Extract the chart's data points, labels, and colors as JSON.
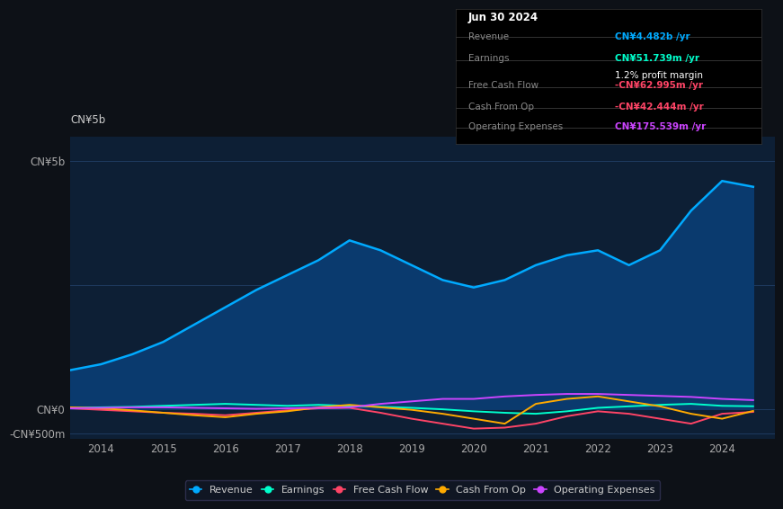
{
  "bg_color": "#0d1117",
  "plot_bg_color": "#0d1f35",
  "grid_color": "#1e3a5f",
  "ylim": [
    -600000000,
    5500000000
  ],
  "yticks": [
    -500000000,
    0,
    5000000000
  ],
  "ytick_labels": [
    "-CN¥500m",
    "CN¥0",
    "CN¥5b"
  ],
  "xmin": 2013.5,
  "xmax": 2024.85,
  "xticks": [
    2014,
    2015,
    2016,
    2017,
    2018,
    2019,
    2020,
    2021,
    2022,
    2023,
    2024
  ],
  "revenue": {
    "years": [
      2013.5,
      2014.0,
      2014.5,
      2015.0,
      2015.5,
      2016.0,
      2016.5,
      2017.0,
      2017.5,
      2018.0,
      2018.5,
      2019.0,
      2019.5,
      2020.0,
      2020.5,
      2021.0,
      2021.5,
      2022.0,
      2022.5,
      2023.0,
      2023.5,
      2024.0,
      2024.5
    ],
    "values": [
      780000000,
      900000000,
      1100000000,
      1350000000,
      1700000000,
      2050000000,
      2400000000,
      2700000000,
      3000000000,
      3400000000,
      3200000000,
      2900000000,
      2600000000,
      2450000000,
      2600000000,
      2900000000,
      3100000000,
      3200000000,
      2900000000,
      3200000000,
      4000000000,
      4600000000,
      4482000000
    ],
    "color": "#00aaff",
    "fill_color": "#0a3a6e",
    "label": "Revenue"
  },
  "earnings": {
    "years": [
      2013.5,
      2014.0,
      2014.5,
      2015.0,
      2015.5,
      2016.0,
      2016.5,
      2017.0,
      2017.5,
      2018.0,
      2018.5,
      2019.0,
      2019.5,
      2020.0,
      2020.5,
      2021.0,
      2021.5,
      2022.0,
      2022.5,
      2023.0,
      2023.5,
      2024.0,
      2024.5
    ],
    "values": [
      20000000,
      30000000,
      40000000,
      60000000,
      80000000,
      100000000,
      80000000,
      60000000,
      80000000,
      60000000,
      40000000,
      20000000,
      -10000000,
      -50000000,
      -80000000,
      -100000000,
      -50000000,
      20000000,
      50000000,
      80000000,
      100000000,
      60000000,
      51739000
    ],
    "color": "#00ffcc",
    "label": "Earnings"
  },
  "free_cash_flow": {
    "years": [
      2013.5,
      2014.0,
      2014.5,
      2015.0,
      2015.5,
      2016.0,
      2016.5,
      2017.0,
      2017.5,
      2018.0,
      2018.5,
      2019.0,
      2019.5,
      2020.0,
      2020.5,
      2021.0,
      2021.5,
      2022.0,
      2022.5,
      2023.0,
      2023.5,
      2024.0,
      2024.5
    ],
    "values": [
      10000000,
      -20000000,
      -50000000,
      -80000000,
      -100000000,
      -130000000,
      -80000000,
      -30000000,
      10000000,
      20000000,
      -80000000,
      -200000000,
      -300000000,
      -400000000,
      -380000000,
      -300000000,
      -150000000,
      -50000000,
      -100000000,
      -200000000,
      -300000000,
      -100000000,
      -62995000
    ],
    "color": "#ff4466",
    "label": "Free Cash Flow"
  },
  "cash_from_op": {
    "years": [
      2013.5,
      2014.0,
      2014.5,
      2015.0,
      2015.5,
      2016.0,
      2016.5,
      2017.0,
      2017.5,
      2018.0,
      2018.5,
      2019.0,
      2019.5,
      2020.0,
      2020.5,
      2021.0,
      2021.5,
      2022.0,
      2022.5,
      2023.0,
      2023.5,
      2024.0,
      2024.5
    ],
    "values": [
      30000000,
      10000000,
      -30000000,
      -80000000,
      -130000000,
      -170000000,
      -100000000,
      -50000000,
      30000000,
      80000000,
      30000000,
      -20000000,
      -100000000,
      -200000000,
      -300000000,
      100000000,
      200000000,
      250000000,
      150000000,
      50000000,
      -100000000,
      -200000000,
      -42444000
    ],
    "color": "#ffaa00",
    "label": "Cash From Op"
  },
  "operating_expenses": {
    "years": [
      2013.5,
      2014.0,
      2014.5,
      2015.0,
      2015.5,
      2016.0,
      2016.5,
      2017.0,
      2017.5,
      2018.0,
      2018.5,
      2019.0,
      2019.5,
      2020.0,
      2020.5,
      2021.0,
      2021.5,
      2022.0,
      2022.5,
      2023.0,
      2023.5,
      2024.0,
      2024.5
    ],
    "values": [
      10000000,
      20000000,
      30000000,
      30000000,
      20000000,
      10000000,
      0,
      10000000,
      20000000,
      30000000,
      100000000,
      150000000,
      200000000,
      200000000,
      250000000,
      280000000,
      300000000,
      300000000,
      280000000,
      260000000,
      240000000,
      200000000,
      175539000
    ],
    "color": "#cc44ff",
    "label": "Operating Expenses"
  },
  "tooltip": {
    "date": "Jun 30 2024",
    "rows": [
      {
        "label": "Revenue",
        "value": "CN¥4.482b /yr",
        "value_color": "#00aaff",
        "extra": null
      },
      {
        "label": "Earnings",
        "value": "CN¥51.739m /yr",
        "value_color": "#00ffcc",
        "extra": "1.2% profit margin"
      },
      {
        "label": "Free Cash Flow",
        "value": "-CN¥62.995m /yr",
        "value_color": "#ff4466",
        "extra": null
      },
      {
        "label": "Cash From Op",
        "value": "-CN¥42.444m /yr",
        "value_color": "#ff4466",
        "extra": null
      },
      {
        "label": "Operating Expenses",
        "value": "CN¥175.539m /yr",
        "value_color": "#cc44ff",
        "extra": null
      }
    ]
  },
  "legend_items": [
    {
      "label": "Revenue",
      "color": "#00aaff"
    },
    {
      "label": "Earnings",
      "color": "#00ffcc"
    },
    {
      "label": "Free Cash Flow",
      "color": "#ff4466"
    },
    {
      "label": "Cash From Op",
      "color": "#ffaa00"
    },
    {
      "label": "Operating Expenses",
      "color": "#cc44ff"
    }
  ]
}
